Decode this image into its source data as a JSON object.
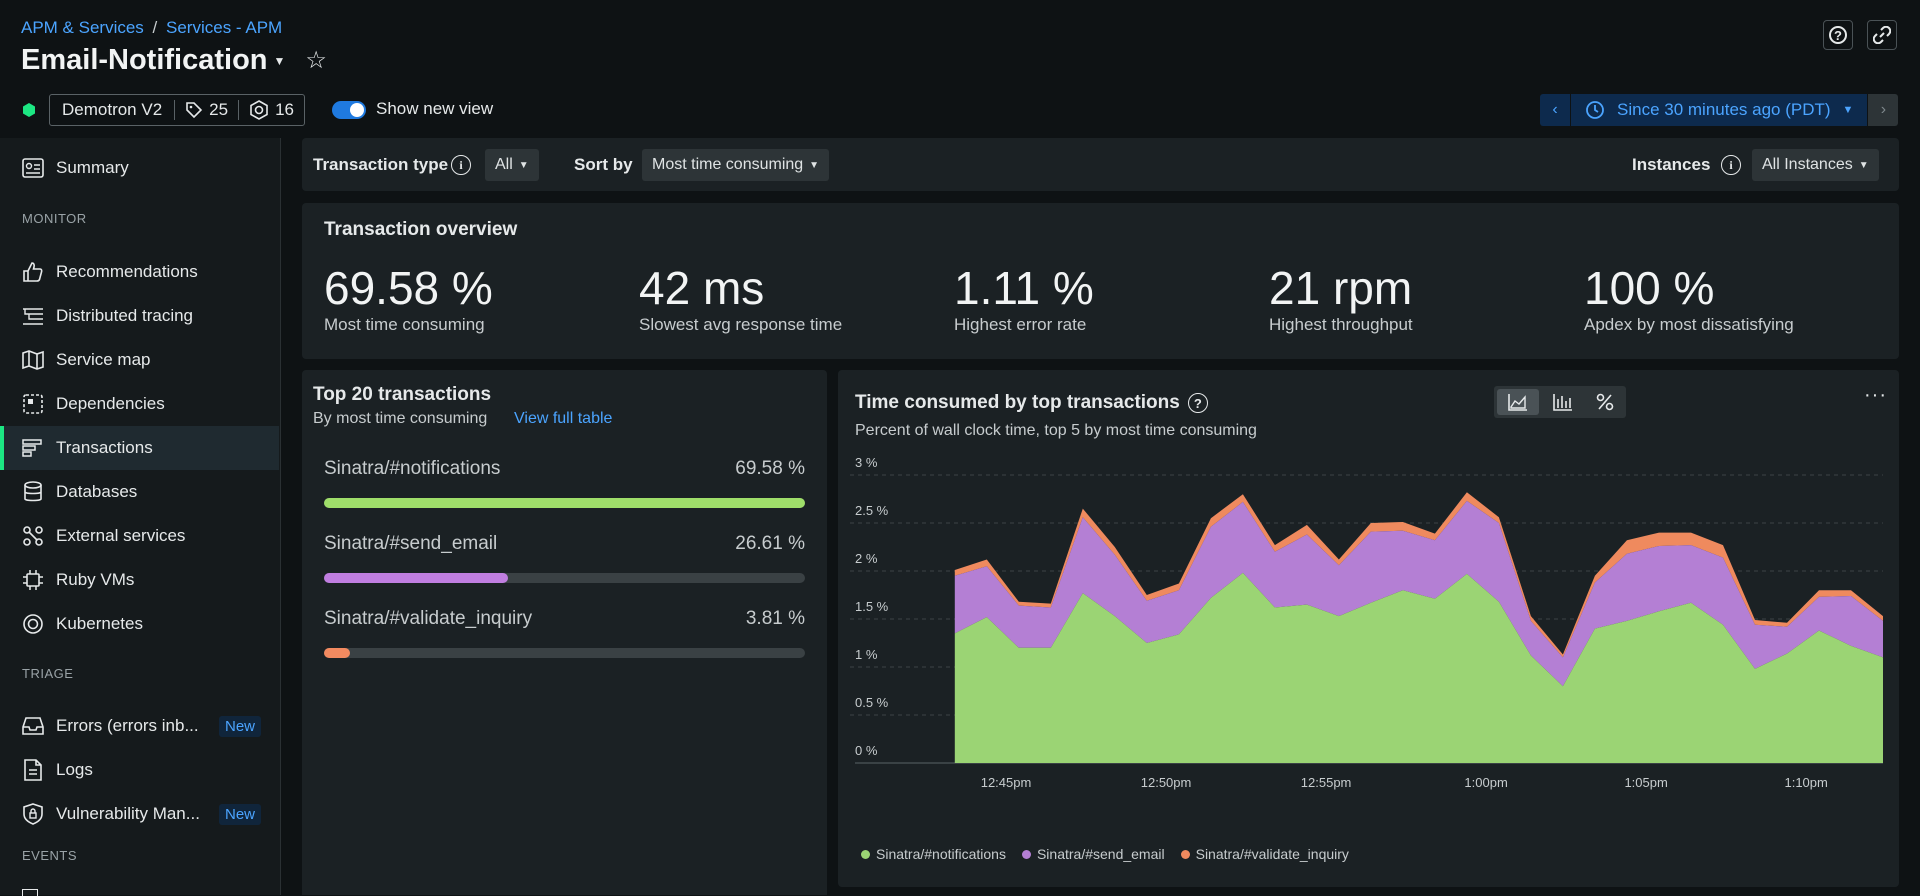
{
  "header": {
    "breadcrumb_root": "APM & Services",
    "breadcrumb_sep": "/",
    "breadcrumb_current": "Services - APM",
    "title": "Email-Notification",
    "account": "Demotron V2",
    "tags_count": "25",
    "entities_count": "16",
    "toggle_label": "Show new view",
    "toggle_on": true,
    "time_range": "Since 30 minutes ago (PDT)"
  },
  "sidebar": {
    "summary": "Summary",
    "monitor_heading": "MONITOR",
    "monitor_items": [
      "Recommendations",
      "Distributed tracing",
      "Service map",
      "Dependencies",
      "Transactions",
      "Databases",
      "External services",
      "Ruby VMs",
      "Kubernetes"
    ],
    "triage_heading": "TRIAGE",
    "triage_items": [
      "Errors (errors inb...",
      "Logs",
      "Vulnerability Man..."
    ],
    "new_badge": "New",
    "events_heading": "EVENTS",
    "active_item": "Transactions"
  },
  "filters": {
    "transaction_type_label": "Transaction type",
    "transaction_type_value": "All",
    "sort_label": "Sort by",
    "sort_value": "Most time consuming",
    "instances_label": "Instances",
    "instances_value": "All Instances"
  },
  "overview": {
    "title": "Transaction overview",
    "kpis": [
      {
        "value": "69.58 %",
        "label": "Most time consuming"
      },
      {
        "value": "42 ms",
        "label": "Slowest avg response time"
      },
      {
        "value": "1.11 %",
        "label": "Highest error rate"
      },
      {
        "value": "21 rpm",
        "label": "Highest throughput"
      },
      {
        "value": "100 %",
        "label": "Apdex by most dissatisfying"
      }
    ]
  },
  "top_transactions": {
    "title": "Top 20 transactions",
    "subtitle": "By most time consuming",
    "view_link": "View full table",
    "items": [
      {
        "name": "Sinatra/#notifications",
        "value_text": "69.58 %",
        "fraction": 1.0,
        "color": "#9fde6a"
      },
      {
        "name": "Sinatra/#send_email",
        "value_text": "26.61 %",
        "fraction": 0.3824,
        "color": "#c07ee0"
      },
      {
        "name": "Sinatra/#validate_inquiry",
        "value_text": "3.81 %",
        "fraction": 0.0548,
        "color": "#f28a60"
      }
    ]
  },
  "chart_panel": {
    "title": "Time consumed by top transactions",
    "subtitle": "Percent of wall clock time, top 5 by most time consuming",
    "view_icons": [
      "area-chart-icon",
      "bar-chart-icon",
      "percent-icon"
    ],
    "menu_icon": "ellipsis-icon"
  },
  "chart_data": {
    "type": "area",
    "stacked": true,
    "ylim": [
      0,
      3
    ],
    "yticks": [
      "0 %",
      "0.5 %",
      "1 %",
      "1.5 %",
      "2 %",
      "2.5 %",
      "3 %"
    ],
    "ytick_values": [
      0,
      0.5,
      1,
      1.5,
      2,
      2.5,
      3
    ],
    "xticks": [
      "12:45pm",
      "12:50pm",
      "12:55pm",
      "1:00pm",
      "1:05pm",
      "1:10pm"
    ],
    "xtick_minutes": [
      3,
      8,
      13,
      18,
      23,
      28
    ],
    "x_minutes": [
      1.4,
      2.4,
      3.4,
      4.4,
      5.4,
      6.4,
      7.4,
      8.4,
      9.4,
      10.4,
      11.4,
      12.4,
      13.4,
      14.4,
      15.4,
      16.4,
      17.4,
      18.4,
      19.4,
      20.4,
      21.4,
      22.4,
      23.4,
      24.4,
      25.4,
      26.4,
      27.4,
      28.4,
      29.4,
      30.4
    ],
    "grid": "horizontal-dashed",
    "legend_position": "bottom-left",
    "series": [
      {
        "name": "Sinatra/#notifications",
        "color": "#9bd474",
        "values": [
          1.35,
          1.52,
          1.2,
          1.2,
          1.77,
          1.53,
          1.25,
          1.34,
          1.72,
          1.98,
          1.62,
          1.65,
          1.53,
          1.67,
          1.8,
          1.71,
          1.97,
          1.68,
          1.12,
          0.8,
          1.4,
          1.48,
          1.58,
          1.67,
          1.44,
          0.98,
          1.14,
          1.38,
          1.22,
          1.1
        ]
      },
      {
        "name": "Sinatra/#send_email",
        "color": "#b47fd4",
        "values": [
          0.6,
          0.53,
          0.44,
          0.42,
          0.79,
          0.64,
          0.44,
          0.46,
          0.74,
          0.74,
          0.58,
          0.73,
          0.53,
          0.74,
          0.62,
          0.61,
          0.76,
          0.82,
          0.36,
          0.3,
          0.48,
          0.7,
          0.68,
          0.6,
          0.7,
          0.46,
          0.28,
          0.35,
          0.52,
          0.38
        ]
      },
      {
        "name": "Sinatra/#validate_inquiry",
        "color": "#ef8a5e",
        "values": [
          0.06,
          0.07,
          0.04,
          0.04,
          0.09,
          0.08,
          0.06,
          0.07,
          0.09,
          0.08,
          0.07,
          0.1,
          0.06,
          0.09,
          0.09,
          0.07,
          0.09,
          0.06,
          0.05,
          0.03,
          0.07,
          0.14,
          0.14,
          0.13,
          0.13,
          0.05,
          0.04,
          0.07,
          0.06,
          0.05
        ]
      }
    ]
  }
}
